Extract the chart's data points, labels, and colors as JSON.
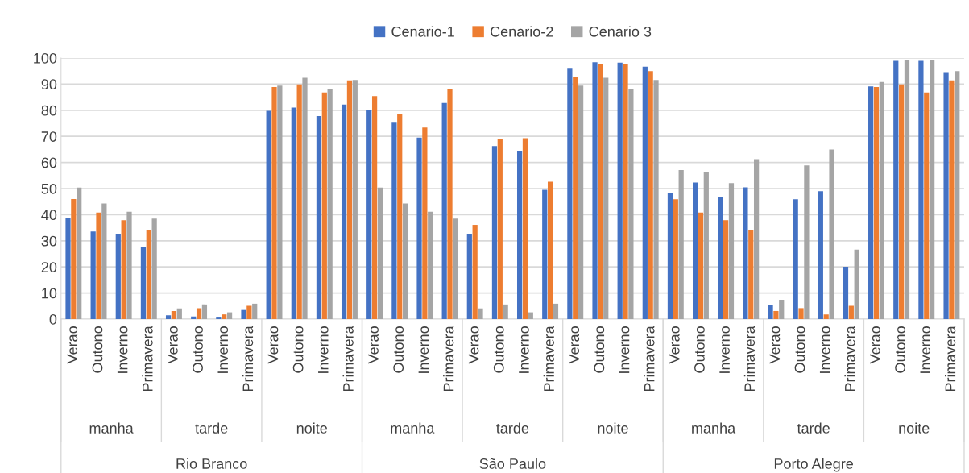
{
  "chart_data": {
    "type": "bar",
    "categories": [
      "Verao",
      "Outono",
      "Inverno",
      "Primavera",
      "Verao",
      "Outono",
      "Inverno",
      "Primavera",
      "Verao",
      "Outono",
      "Inverno",
      "Primavera",
      "Verao",
      "Outono",
      "Inverno",
      "Primavera",
      "Verao",
      "Outono",
      "Inverno",
      "Primavera",
      "Verao",
      "Outono",
      "Inverno",
      "Primavera",
      "Verao",
      "Outono",
      "Inverno",
      "Primavera",
      "Verao",
      "Outono",
      "Inverno",
      "Primavera",
      "Verao",
      "Outono",
      "Inverno",
      "Primavera"
    ],
    "series": [
      {
        "name": "Cenario-1",
        "color": "#4472c4",
        "values": [
          38.8,
          33.6,
          32.4,
          27.5,
          1.5,
          1.0,
          0.6,
          3.5,
          79.8,
          81.0,
          77.8,
          82.2,
          80.0,
          75.2,
          69.5,
          82.8,
          32.4,
          66.3,
          64.3,
          49.5,
          95.9,
          98.4,
          98.2,
          96.7,
          48.2,
          52.3,
          46.9,
          50.5,
          5.4,
          45.9,
          49.0,
          20.1,
          89.1,
          98.9,
          98.9,
          94.6
        ]
      },
      {
        "name": "Cenario-2",
        "color": "#ed7d31",
        "values": [
          46.0,
          40.8,
          37.9,
          34.1,
          3.1,
          4.2,
          1.8,
          5.1,
          88.9,
          89.9,
          86.8,
          91.4,
          85.4,
          78.6,
          73.4,
          88.1,
          36.1,
          69.1,
          69.3,
          52.6,
          92.8,
          97.5,
          97.7,
          95.0,
          45.9,
          40.8,
          37.9,
          34.1,
          3.1,
          4.2,
          1.8,
          5.1,
          88.9,
          89.9,
          86.8,
          91.4
        ]
      },
      {
        "name": "Cenario 3",
        "color": "#a5a5a5",
        "values": [
          50.4,
          44.3,
          41.1,
          38.5,
          4.1,
          5.6,
          2.6,
          5.9,
          89.4,
          92.4,
          88.0,
          91.6,
          50.4,
          44.3,
          41.1,
          38.5,
          4.1,
          5.6,
          2.6,
          5.9,
          89.4,
          92.4,
          88.0,
          91.6,
          57.1,
          56.5,
          52.1,
          61.3,
          7.4,
          58.9,
          65.0,
          26.6,
          90.8,
          99.2,
          99.1,
          95.0
        ]
      }
    ],
    "annotations": [
      "manha",
      "tarde",
      "noite",
      "manha",
      "tarde",
      "noite",
      "manha",
      "tarde",
      "noite",
      "Rio Branco",
      "São Paulo",
      "Porto Alegre"
    ],
    "ylim": [
      0,
      100
    ],
    "yticks": [
      0,
      10,
      20,
      30,
      40,
      50,
      60,
      70,
      80,
      90,
      100
    ],
    "grid": "y",
    "legend": "top"
  }
}
